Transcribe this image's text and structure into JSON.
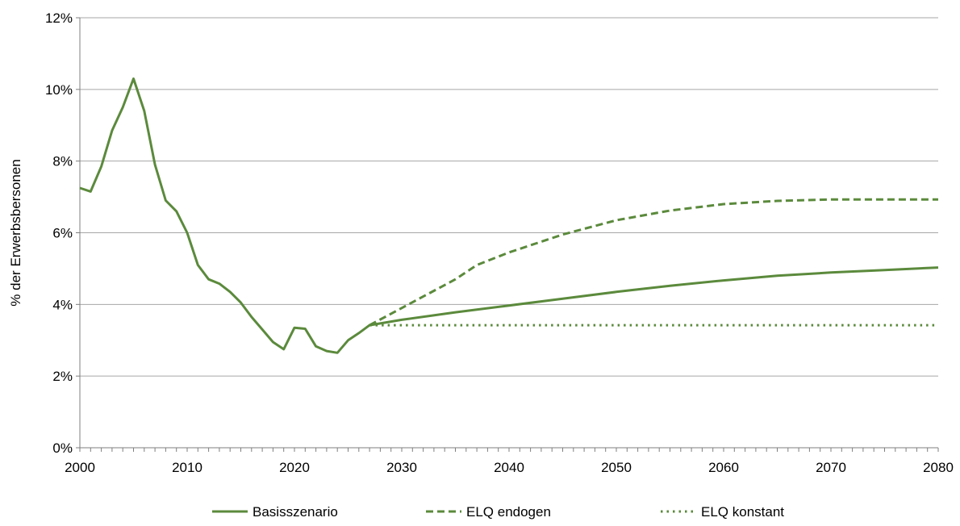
{
  "chart_data": {
    "type": "line",
    "title": "",
    "xlabel": "",
    "ylabel": "% der Erwerbsbersonen",
    "xlim": [
      2000,
      2080
    ],
    "ylim": [
      0,
      12
    ],
    "x_ticks": [
      "2000",
      "2010",
      "2020",
      "2030",
      "2040",
      "2050",
      "2060",
      "2070",
      "2080"
    ],
    "y_ticks": [
      "0%",
      "2%",
      "4%",
      "6%",
      "8%",
      "10%",
      "12%"
    ],
    "grid": "horizontal",
    "legend_position": "bottom",
    "color": "#5b8a3c",
    "series": [
      {
        "name": "Basisszenario",
        "style": "solid",
        "x": [
          2000,
          2001,
          2002,
          2003,
          2004,
          2005,
          2006,
          2007,
          2008,
          2009,
          2010,
          2011,
          2012,
          2013,
          2014,
          2015,
          2016,
          2017,
          2018,
          2019,
          2020,
          2021,
          2022,
          2023,
          2024,
          2025,
          2026,
          2027,
          2030,
          2035,
          2040,
          2045,
          2050,
          2055,
          2060,
          2065,
          2070,
          2075,
          2080
        ],
        "values": [
          7.25,
          7.15,
          7.85,
          8.85,
          9.5,
          10.3,
          9.4,
          7.9,
          6.9,
          6.6,
          6.0,
          5.1,
          4.7,
          4.58,
          4.35,
          4.05,
          3.65,
          3.3,
          2.95,
          2.75,
          3.35,
          3.32,
          2.83,
          2.7,
          2.65,
          3.0,
          3.2,
          3.42,
          3.57,
          3.78,
          3.97,
          4.16,
          4.35,
          4.52,
          4.67,
          4.8,
          4.89,
          4.96,
          5.03
        ]
      },
      {
        "name": "ELQ endogen",
        "style": "dashed",
        "x": [
          2027,
          2030,
          2035,
          2037,
          2040,
          2045,
          2050,
          2055,
          2060,
          2065,
          2070,
          2075,
          2080
        ],
        "values": [
          3.42,
          3.9,
          4.7,
          5.1,
          5.45,
          5.95,
          6.35,
          6.62,
          6.8,
          6.89,
          6.93,
          6.93,
          6.93
        ]
      },
      {
        "name": "ELQ konstant",
        "style": "dotted",
        "x": [
          2027,
          2080
        ],
        "values": [
          3.42,
          3.42
        ]
      }
    ]
  }
}
